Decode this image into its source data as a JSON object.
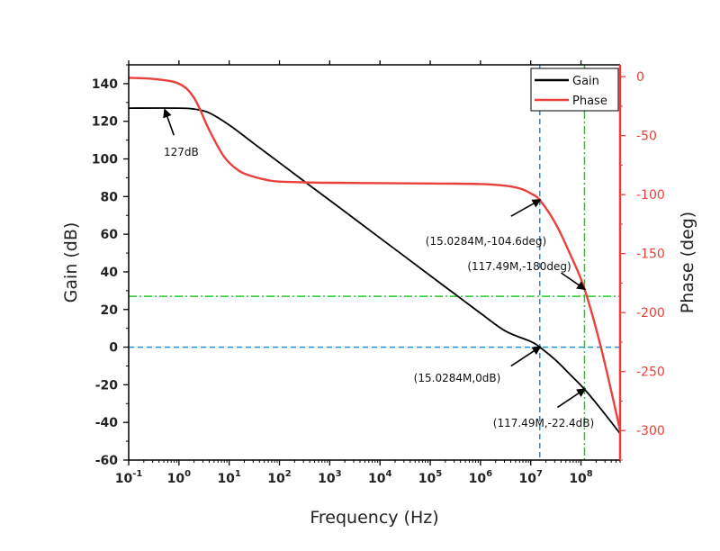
{
  "chart_data": {
    "type": "line",
    "title": "",
    "xlabel": "Frequency (Hz)",
    "ylabel": "Gain (dB)",
    "y2label": "Phase (deg)",
    "xscale": "log",
    "xlim": [
      0.1,
      600000000
    ],
    "ylim": [
      -60,
      150
    ],
    "y2lim": [
      -325,
      10
    ],
    "x_ticks": [
      {
        "base": "10",
        "exp": "-1",
        "value": 0.1
      },
      {
        "base": "10",
        "exp": "0",
        "value": 1
      },
      {
        "base": "10",
        "exp": "1",
        "value": 10
      },
      {
        "base": "10",
        "exp": "2",
        "value": 100
      },
      {
        "base": "10",
        "exp": "3",
        "value": 1000
      },
      {
        "base": "10",
        "exp": "4",
        "value": 10000
      },
      {
        "base": "10",
        "exp": "5",
        "value": 100000
      },
      {
        "base": "10",
        "exp": "6",
        "value": 1000000
      },
      {
        "base": "10",
        "exp": "7",
        "value": 10000000
      },
      {
        "base": "10",
        "exp": "8",
        "value": 100000000
      }
    ],
    "y_ticks": [
      "140",
      "120",
      "100",
      "80",
      "60",
      "40",
      "20",
      "0",
      "-20",
      "-40",
      "-60"
    ],
    "y2_ticks": [
      "0",
      "-50",
      "-100",
      "-150",
      "-200",
      "-250",
      "-300"
    ],
    "colors": {
      "gain": "#000000",
      "phase": "#e8403a",
      "ref_blue": "#1e90e0",
      "ref_green": "#22cc22"
    },
    "legend": {
      "position": "top-right",
      "entries": [
        "Gain",
        "Phase"
      ]
    },
    "series": [
      {
        "name": "Gain",
        "axis": "left",
        "x_log10": [
          -1,
          0,
          0.3,
          0.6,
          1,
          1.5,
          2,
          2.5,
          3,
          3.5,
          4,
          4.5,
          5,
          5.5,
          6,
          6.5,
          7,
          7.18,
          7.5,
          7.8,
          8.07,
          8.4,
          8.78
        ],
        "values": [
          127,
          127,
          126.5,
          124.5,
          118,
          108,
          98,
          88,
          78,
          68,
          58,
          48,
          38,
          28,
          18,
          8.5,
          3,
          0,
          -7,
          -15,
          -22.4,
          -33,
          -46
        ]
      },
      {
        "name": "Phase",
        "axis": "right",
        "x_log10": [
          -1,
          -0.5,
          0,
          0.3,
          0.6,
          0.9,
          1.2,
          1.5,
          1.8,
          2,
          2.5,
          3,
          4,
          5,
          6,
          6.5,
          6.8,
          7,
          7.18,
          7.5,
          7.8,
          8.07,
          8.4,
          8.78
        ],
        "values": [
          -1,
          -2,
          -6,
          -18,
          -45,
          -68,
          -80,
          -85,
          -88,
          -89,
          -89.6,
          -90,
          -90.3,
          -90.6,
          -91,
          -92.5,
          -95,
          -99,
          -104.6,
          -125,
          -152,
          -180,
          -230,
          -300
        ]
      }
    ],
    "reference_lines": [
      {
        "orientation": "horizontal",
        "axis": "left",
        "value": 0,
        "color": "blue",
        "style": "dashed"
      },
      {
        "orientation": "horizontal",
        "axis": "left",
        "value": 27,
        "color": "green",
        "style": "dash-dot"
      },
      {
        "orientation": "vertical",
        "x_log10": 7.18,
        "color": "blue",
        "style": "dashed"
      },
      {
        "orientation": "vertical",
        "x_log10": 8.07,
        "color": "green",
        "style": "dash-dot"
      }
    ],
    "annotations": [
      {
        "text": "127dB",
        "target_x_log10": -0.28,
        "target_y": 126,
        "axis": "left"
      },
      {
        "text": "(15.0284M,-104.6deg)",
        "target_x_log10": 7.18,
        "target_y": -104.6,
        "axis": "right"
      },
      {
        "text": "(117.49M,-180deg)",
        "target_x_log10": 8.07,
        "target_y": -180,
        "axis": "right"
      },
      {
        "text": "(15.0284M,0dB)",
        "target_x_log10": 7.18,
        "target_y": 0,
        "axis": "left"
      },
      {
        "text": "(117.49M,-22.4dB)",
        "target_x_log10": 8.07,
        "target_y": -22.4,
        "axis": "left"
      }
    ]
  }
}
